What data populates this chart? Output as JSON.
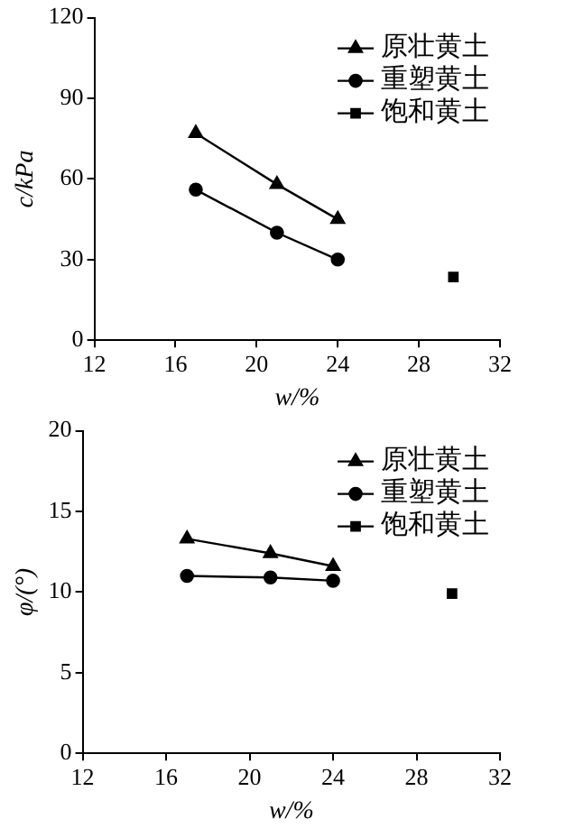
{
  "chart_data": [
    {
      "type": "line",
      "xlabel": "w/%",
      "ylabel": "c/kPa",
      "xlim": [
        12,
        32
      ],
      "xticks": [
        12,
        16,
        20,
        24,
        28,
        32
      ],
      "ylim": [
        0,
        120
      ],
      "yticks": [
        0,
        30,
        60,
        90,
        120
      ],
      "grid": false,
      "legend": "top right",
      "line_style": "solid",
      "series": [
        {
          "name": "原壮黄土",
          "color": "#000000",
          "marker": "triangle",
          "x": [
            17,
            21,
            24
          ],
          "values": [
            77,
            58,
            45
          ]
        },
        {
          "name": "重塑黄土",
          "color": "#000000",
          "marker": "circle",
          "x": [
            17,
            21,
            24
          ],
          "values": [
            56,
            40,
            30
          ]
        },
        {
          "name": "饱和黄土",
          "color": "#000000",
          "marker": "square",
          "x": [
            29.7
          ],
          "values": [
            23.5
          ]
        }
      ]
    },
    {
      "type": "line",
      "xlabel": "w/%",
      "ylabel": "φ/(°)",
      "xlim": [
        12,
        32
      ],
      "xticks": [
        12,
        16,
        20,
        24,
        28,
        32
      ],
      "ylim": [
        0,
        20
      ],
      "yticks": [
        0,
        5,
        10,
        15,
        20
      ],
      "grid": false,
      "legend": "top right",
      "line_style": "solid",
      "series": [
        {
          "name": "原壮黄土",
          "color": "#000000",
          "marker": "triangle",
          "x": [
            17,
            21,
            24
          ],
          "values": [
            13.3,
            12.4,
            11.6
          ]
        },
        {
          "name": "重塑黄土",
          "color": "#000000",
          "marker": "circle",
          "x": [
            17,
            21,
            24
          ],
          "values": [
            11.0,
            10.9,
            10.7
          ]
        },
        {
          "name": "饱和黄土",
          "color": "#000000",
          "marker": "square",
          "x": [
            29.7
          ],
          "values": [
            9.9
          ]
        }
      ]
    }
  ]
}
